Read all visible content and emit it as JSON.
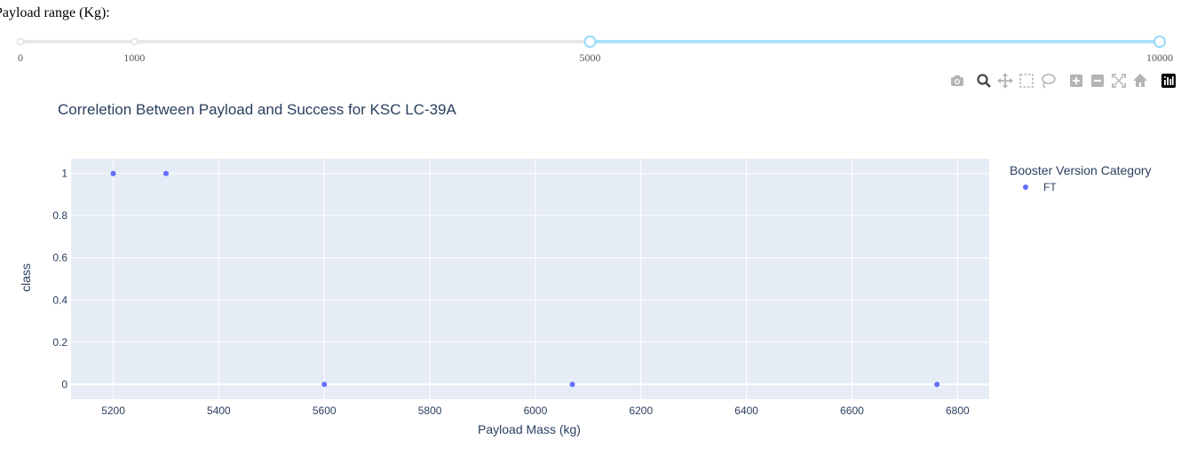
{
  "slider": {
    "label": "Payload range (Kg):",
    "min": 0,
    "max": 10000,
    "value_low": 5000,
    "value_high": 10000,
    "marks": [
      {
        "value": 0,
        "label": "0"
      },
      {
        "value": 1000,
        "label": "1000"
      },
      {
        "value": 5000,
        "label": "5000"
      },
      {
        "value": 10000,
        "label": "10000"
      }
    ],
    "accent_color": "#abe2fb",
    "rail_color": "#e9e9e9",
    "handle_color": "#96dbfa"
  },
  "modebar": {
    "buttons": [
      {
        "name": "camera-icon"
      },
      {
        "name": "zoom-icon"
      },
      {
        "name": "pan-icon"
      },
      {
        "name": "box-select-icon"
      },
      {
        "name": "lasso-select-icon"
      },
      {
        "name": "zoom-in-icon"
      },
      {
        "name": "zoom-out-icon"
      },
      {
        "name": "autoscale-icon"
      },
      {
        "name": "reset-axes-icon"
      },
      {
        "name": "plotly-logo-icon"
      }
    ]
  },
  "chart_data": {
    "type": "scatter",
    "title": "Correletion Between Payload and Success for KSC LC-39A",
    "xlabel": "Payload Mass (kg)",
    "ylabel": "class",
    "xlim": [
      5120,
      6860
    ],
    "ylim": [
      -0.07,
      1.07
    ],
    "xticks": [
      5200,
      5400,
      5600,
      5800,
      6000,
      6200,
      6400,
      6600,
      6800
    ],
    "yticks": [
      0,
      0.2,
      0.4,
      0.6,
      0.8,
      1
    ],
    "ytick_labels": [
      "0",
      "0.2",
      "0.4",
      "0.6",
      "0.8",
      "1"
    ],
    "grid": true,
    "legend_title": "Booster Version Category",
    "legend_position": "right",
    "series": [
      {
        "name": "FT",
        "color": "#636efa",
        "points": [
          {
            "x": 5200,
            "y": 1
          },
          {
            "x": 5300,
            "y": 1
          },
          {
            "x": 5600,
            "y": 0
          },
          {
            "x": 6070,
            "y": 0
          },
          {
            "x": 6761,
            "y": 0
          }
        ]
      }
    ],
    "plot_bg": "#e5ecf6",
    "text_color": "#2a3f5f"
  }
}
